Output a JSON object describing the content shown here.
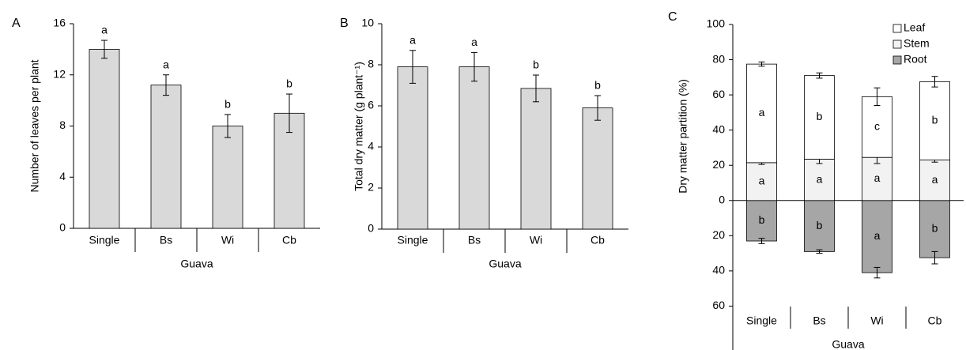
{
  "chart_data": [
    {
      "type": "bar",
      "panel": "A",
      "ylabel": "Number of leaves per plant",
      "xlabel": "Guava",
      "categories": [
        "Single",
        "Bs",
        "Wi",
        "Cb"
      ],
      "values": [
        14,
        11.2,
        8,
        9
      ],
      "errors": [
        0.7,
        0.8,
        0.9,
        1.5
      ],
      "letters": [
        "a",
        "a",
        "b",
        "b"
      ],
      "color": "#d9d9d9",
      "ylim": [
        0,
        16
      ],
      "yticks": [
        0,
        4,
        8,
        12,
        16
      ]
    },
    {
      "type": "bar",
      "panel": "B",
      "ylabel": "Total dry matter (g plant⁻¹)",
      "xlabel": "Guava",
      "categories": [
        "Single",
        "Bs",
        "Wi",
        "Cb"
      ],
      "values": [
        7.9,
        7.9,
        6.85,
        5.9
      ],
      "errors": [
        0.8,
        0.7,
        0.65,
        0.6
      ],
      "letters": [
        "a",
        "a",
        "b",
        "b"
      ],
      "color": "#d9d9d9",
      "ylim": [
        0,
        10
      ],
      "yticks": [
        0,
        2,
        4,
        6,
        8,
        10
      ]
    },
    {
      "type": "stacked_bar",
      "panel": "C",
      "ylabel": "Dry matter partition (%)",
      "xlabel": "Guava",
      "categories": [
        "Single",
        "Bs",
        "Wi",
        "Cb"
      ],
      "series": [
        {
          "name": "Leaf",
          "color": "#ffffff",
          "values": [
            56,
            47.5,
            34.5,
            44.5
          ],
          "errors": [
            1.2,
            1.5,
            5,
            3
          ],
          "letters": [
            "a",
            "b",
            "c",
            "b"
          ]
        },
        {
          "name": "Stem",
          "color": "#f2f2f2",
          "values": [
            21.5,
            23.5,
            24.5,
            23
          ],
          "errors": [
            1,
            2.5,
            3.5,
            1.2
          ],
          "letters": [
            "a",
            "a",
            "a",
            "a"
          ]
        },
        {
          "name": "Root",
          "color": "#a6a6a6",
          "values": [
            -23,
            -29,
            -41,
            -32.5
          ],
          "errors": [
            1.5,
            1,
            3,
            3.5
          ],
          "letters": [
            "b",
            "b",
            "a",
            "b"
          ]
        }
      ],
      "ylim": [
        -80,
        100
      ],
      "yticks": [
        {
          "value": -60,
          "label": "60"
        },
        {
          "value": -40,
          "label": "40"
        },
        {
          "value": -20,
          "label": "20"
        },
        0,
        20,
        40,
        60,
        80,
        100
      ],
      "legend": "upper-right"
    }
  ]
}
